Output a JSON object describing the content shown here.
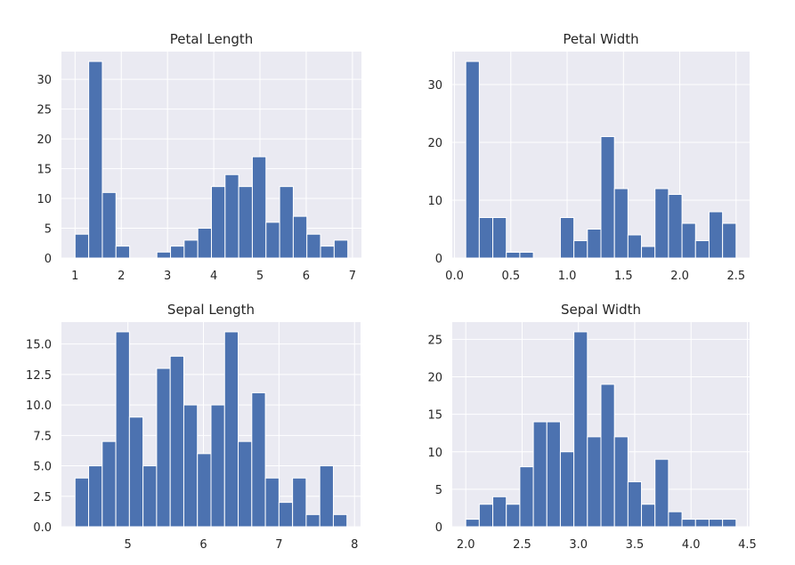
{
  "chart_data": [
    {
      "type": "bar",
      "title": "Petal Length",
      "xlabel": "",
      "ylabel": "",
      "bin_edges": [
        1.0,
        1.295,
        1.59,
        1.885,
        2.18,
        2.475,
        2.77,
        3.065,
        3.36,
        3.655,
        3.95,
        4.245,
        4.54,
        4.835,
        5.13,
        5.425,
        5.72,
        6.015,
        6.31,
        6.605,
        6.9
      ],
      "values": [
        4,
        33,
        11,
        2,
        0,
        0,
        1,
        2,
        3,
        5,
        12,
        14,
        12,
        17,
        6,
        12,
        7,
        4,
        2,
        3
      ],
      "xlim": [
        0.705,
        7.195
      ],
      "ylim": [
        0,
        34.65
      ],
      "xticks": [
        1,
        2,
        3,
        4,
        5,
        6,
        7
      ],
      "xtick_labels": [
        "1",
        "2",
        "3",
        "4",
        "5",
        "6",
        "7"
      ],
      "yticks": [
        0,
        5,
        10,
        15,
        20,
        25,
        30
      ],
      "ytick_labels": [
        "0",
        "5",
        "10",
        "15",
        "20",
        "25",
        "30"
      ],
      "grid": true
    },
    {
      "type": "bar",
      "title": "Petal Width",
      "xlabel": "",
      "ylabel": "",
      "bin_edges": [
        0.1,
        0.22,
        0.34,
        0.46,
        0.58,
        0.7,
        0.82,
        0.94,
        1.06,
        1.18,
        1.3,
        1.42,
        1.54,
        1.66,
        1.78,
        1.9,
        2.02,
        2.14,
        2.26,
        2.38,
        2.5
      ],
      "values": [
        34,
        7,
        7,
        1,
        1,
        0,
        0,
        7,
        3,
        5,
        21,
        12,
        4,
        2,
        12,
        11,
        6,
        3,
        8,
        6
      ],
      "xlim": [
        -0.02,
        2.62
      ],
      "ylim": [
        0,
        35.7
      ],
      "xticks": [
        0.0,
        0.5,
        1.0,
        1.5,
        2.0,
        2.5
      ],
      "xtick_labels": [
        "0.0",
        "0.5",
        "1.0",
        "1.5",
        "2.0",
        "2.5"
      ],
      "yticks": [
        0,
        10,
        20,
        30
      ],
      "ytick_labels": [
        "0",
        "10",
        "20",
        "30"
      ],
      "grid": true
    },
    {
      "type": "bar",
      "title": "Sepal Length",
      "xlabel": "",
      "ylabel": "",
      "bin_edges": [
        4.3,
        4.48,
        4.66,
        4.84,
        5.02,
        5.2,
        5.38,
        5.56,
        5.74,
        5.92,
        6.1,
        6.28,
        6.46,
        6.64,
        6.82,
        7.0,
        7.18,
        7.36,
        7.54,
        7.72,
        7.9
      ],
      "values": [
        4,
        5,
        7,
        16,
        9,
        5,
        13,
        14,
        10,
        6,
        10,
        16,
        7,
        11,
        4,
        2,
        4,
        1,
        5,
        1
      ],
      "xlim": [
        4.12,
        8.08
      ],
      "ylim": [
        0,
        16.8
      ],
      "xticks": [
        5,
        6,
        7,
        8
      ],
      "xtick_labels": [
        "5",
        "6",
        "7",
        "8"
      ],
      "yticks": [
        0,
        2.5,
        5,
        7.5,
        10,
        12.5,
        15
      ],
      "ytick_labels": [
        "0.0",
        "2.5",
        "5.0",
        "7.5",
        "10.0",
        "12.5",
        "15.0"
      ],
      "grid": true
    },
    {
      "type": "bar",
      "title": "Sepal Width",
      "xlabel": "",
      "ylabel": "",
      "bin_edges": [
        2.0,
        2.12,
        2.24,
        2.36,
        2.48,
        2.6,
        2.72,
        2.84,
        2.96,
        3.08,
        3.2,
        3.32,
        3.44,
        3.56,
        3.68,
        3.8,
        3.92,
        4.04,
        4.16,
        4.28,
        4.4
      ],
      "values": [
        1,
        3,
        4,
        3,
        8,
        14,
        14,
        10,
        26,
        12,
        19,
        12,
        6,
        3,
        9,
        2,
        1,
        1,
        1,
        1
      ],
      "xlim": [
        1.88,
        4.52
      ],
      "ylim": [
        0,
        27.3
      ],
      "xticks": [
        2.0,
        2.5,
        3.0,
        3.5,
        4.0,
        4.5
      ],
      "xtick_labels": [
        "2.0",
        "2.5",
        "3.0",
        "3.5",
        "4.0",
        "4.5"
      ],
      "yticks": [
        0,
        5,
        10,
        15,
        20,
        25
      ],
      "ytick_labels": [
        "0",
        "5",
        "10",
        "15",
        "20",
        "25"
      ],
      "grid": true
    }
  ],
  "colors": {
    "bar": "#4c72b0",
    "panel_background": "#eaeaf2",
    "grid": "#ffffff",
    "text": "#262626"
  }
}
